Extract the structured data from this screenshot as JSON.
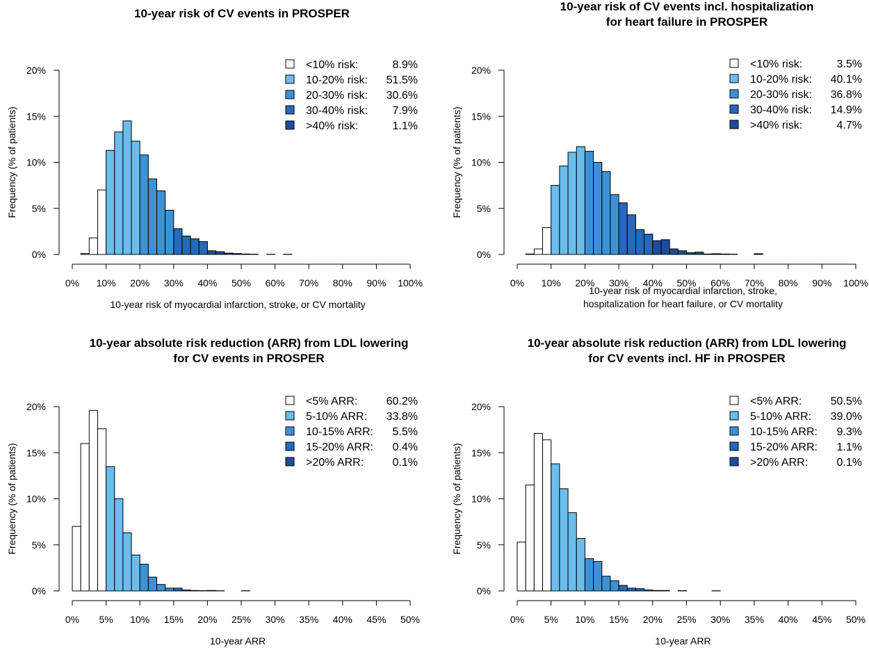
{
  "colors": {
    "bin_fill": [
      "#ffffff",
      "#6bbdeb",
      "#3c92d4",
      "#2569b8",
      "#1c4e9e"
    ],
    "outline": "#000000"
  },
  "chart_data": [
    {
      "type": "bar",
      "title": [
        "10-year risk of CV events in PROSPER"
      ],
      "xlabel": [
        "10-year risk of myocardial infarction, stroke, or CV mortality"
      ],
      "ylabel": "Frequency (% of patients)",
      "xlim": [
        0,
        100
      ],
      "ylim": [
        0,
        20
      ],
      "xticks": [
        "0%",
        "10%",
        "20%",
        "30%",
        "40%",
        "50%",
        "60%",
        "70%",
        "80%",
        "90%",
        "100%"
      ],
      "yticks": [
        "0%",
        "5%",
        "10%",
        "15%",
        "20%"
      ],
      "bin_width": 2.5,
      "bin_starts": [
        2.5,
        5,
        7.5,
        10,
        12.5,
        15,
        17.5,
        20,
        22.5,
        25,
        27.5,
        30,
        32.5,
        35,
        37.5,
        40,
        42.5,
        45,
        47.5,
        50,
        52.5,
        57.5,
        62.5
      ],
      "values": [
        0.1,
        1.8,
        7.0,
        11.3,
        13.3,
        14.5,
        12.3,
        10.8,
        8.2,
        6.9,
        4.8,
        2.8,
        2.0,
        1.7,
        1.4,
        0.4,
        0.3,
        0.15,
        0.1,
        0.05,
        0.03,
        0.02,
        0.02
      ],
      "groups": [
        0,
        0,
        0,
        1,
        1,
        1,
        1,
        2,
        2,
        2,
        2,
        3,
        3,
        3,
        3,
        4,
        4,
        4,
        4,
        4,
        4,
        4,
        4
      ],
      "legend_position": "top-right",
      "legend": [
        {
          "label": "<10% risk:",
          "value": "8.9%"
        },
        {
          "label": "10-20% risk:",
          "value": "51.5%"
        },
        {
          "label": "20-30% risk:",
          "value": "30.6%"
        },
        {
          "label": "30-40% risk:",
          "value": "7.9%"
        },
        {
          "label": ">40% risk:",
          "value": "1.1%"
        }
      ]
    },
    {
      "type": "bar",
      "title": [
        "10-year risk of CV events incl. hospitalization",
        "for heart failure in PROSPER"
      ],
      "xlabel": [
        "10-year risk of myocardial infarction, stroke,",
        "hospitalization for heart failure, or CV mortality"
      ],
      "ylabel": "Frequency (% of patients)",
      "xlim": [
        0,
        100
      ],
      "ylim": [
        0,
        20
      ],
      "xticks": [
        "0%",
        "10%",
        "20%",
        "30%",
        "40%",
        "50%",
        "60%",
        "70%",
        "80%",
        "90%",
        "100%"
      ],
      "yticks": [
        "0%",
        "5%",
        "10%",
        "15%",
        "20%"
      ],
      "bin_width": 2.5,
      "bin_starts": [
        2.5,
        5,
        7.5,
        10,
        12.5,
        15,
        17.5,
        20,
        22.5,
        25,
        27.5,
        30,
        32.5,
        35,
        37.5,
        40,
        42.5,
        45,
        47.5,
        50,
        52.5,
        55,
        57.5,
        60,
        62.5,
        70
      ],
      "values": [
        0.05,
        0.6,
        2.9,
        7.5,
        9.6,
        11.1,
        11.7,
        11.2,
        10.0,
        9.0,
        6.5,
        5.6,
        4.3,
        2.7,
        2.2,
        1.5,
        1.6,
        0.6,
        0.4,
        0.2,
        0.25,
        0.05,
        0.08,
        0.05,
        0.03,
        0.08
      ],
      "groups": [
        0,
        0,
        0,
        1,
        1,
        1,
        1,
        2,
        2,
        2,
        2,
        3,
        3,
        3,
        3,
        4,
        4,
        4,
        4,
        4,
        4,
        4,
        4,
        4,
        4,
        4
      ],
      "legend_position": "top-right",
      "legend": [
        {
          "label": "<10% risk:",
          "value": "3.5%"
        },
        {
          "label": "10-20% risk:",
          "value": "40.1%"
        },
        {
          "label": "20-30% risk:",
          "value": "36.8%"
        },
        {
          "label": "30-40% risk:",
          "value": "14.9%"
        },
        {
          "label": ">40% risk:",
          "value": "4.7%"
        }
      ]
    },
    {
      "type": "bar",
      "title": [
        "10-year absolute risk reduction (ARR) from LDL lowering",
        "for CV events in PROSPER"
      ],
      "xlabel": [
        "10-year ARR"
      ],
      "ylabel": "Frequency (% of patients)",
      "xlim": [
        0,
        50
      ],
      "ylim": [
        0,
        20
      ],
      "xticks": [
        "0%",
        "5%",
        "10%",
        "15%",
        "20%",
        "25%",
        "30%",
        "35%",
        "40%",
        "45%",
        "50%"
      ],
      "yticks": [
        "0%",
        "5%",
        "10%",
        "15%",
        "20%"
      ],
      "bin_width": 1.25,
      "bin_starts": [
        0,
        1.25,
        2.5,
        3.75,
        5,
        6.25,
        7.5,
        8.75,
        10,
        11.25,
        12.5,
        13.75,
        15,
        16.25,
        17.5,
        18.75,
        20,
        21.25,
        25
      ],
      "values": [
        7.0,
        16.0,
        19.6,
        17.6,
        13.5,
        10.0,
        6.3,
        3.9,
        2.9,
        1.5,
        0.7,
        0.3,
        0.3,
        0.1,
        0.05,
        0.03,
        0.05,
        0.02,
        0.02
      ],
      "groups": [
        0,
        0,
        0,
        0,
        1,
        1,
        1,
        1,
        2,
        2,
        2,
        2,
        3,
        3,
        3,
        3,
        4,
        4,
        4
      ],
      "legend_position": "top-right",
      "legend": [
        {
          "label": "<5% ARR:",
          "value": "60.2%"
        },
        {
          "label": "5-10% ARR:",
          "value": "33.8%"
        },
        {
          "label": "10-15% ARR:",
          "value": "5.5%"
        },
        {
          "label": "15-20% ARR:",
          "value": "0.4%"
        },
        {
          "label": ">20% ARR:",
          "value": "0.1%"
        }
      ]
    },
    {
      "type": "bar",
      "title": [
        "10-year absolute risk reduction (ARR) from LDL lowering",
        "for CV events incl. HF in PROSPER"
      ],
      "xlabel": [
        "10-year ARR"
      ],
      "ylabel": "Frequency (% of patients)",
      "xlim": [
        0,
        50
      ],
      "ylim": [
        0,
        20
      ],
      "xticks": [
        "0%",
        "5%",
        "10%",
        "15%",
        "20%",
        "25%",
        "30%",
        "35%",
        "40%",
        "45%",
        "50%"
      ],
      "yticks": [
        "0%",
        "5%",
        "10%",
        "15%",
        "20%"
      ],
      "bin_width": 1.25,
      "bin_starts": [
        0,
        1.25,
        2.5,
        3.75,
        5,
        6.25,
        7.5,
        8.75,
        10,
        11.25,
        12.5,
        13.75,
        15,
        16.25,
        17.5,
        18.75,
        20,
        21.25,
        23.75,
        28.75
      ],
      "values": [
        5.3,
        11.5,
        17.1,
        16.4,
        13.8,
        11.1,
        8.5,
        5.7,
        3.5,
        3.2,
        1.6,
        1.1,
        0.6,
        0.3,
        0.25,
        0.1,
        0.05,
        0.05,
        0.03,
        0.02
      ],
      "groups": [
        0,
        0,
        0,
        0,
        1,
        1,
        1,
        1,
        2,
        2,
        2,
        2,
        3,
        3,
        3,
        3,
        4,
        4,
        4,
        4
      ],
      "legend_position": "top-right",
      "legend": [
        {
          "label": "<5% ARR:",
          "value": "50.5%"
        },
        {
          "label": "5-10% ARR:",
          "value": "39.0%"
        },
        {
          "label": "10-15% ARR:",
          "value": "9.3%"
        },
        {
          "label": "15-20% ARR:",
          "value": "1.1%"
        },
        {
          "label": ">20% ARR:",
          "value": "0.1%"
        }
      ]
    }
  ]
}
